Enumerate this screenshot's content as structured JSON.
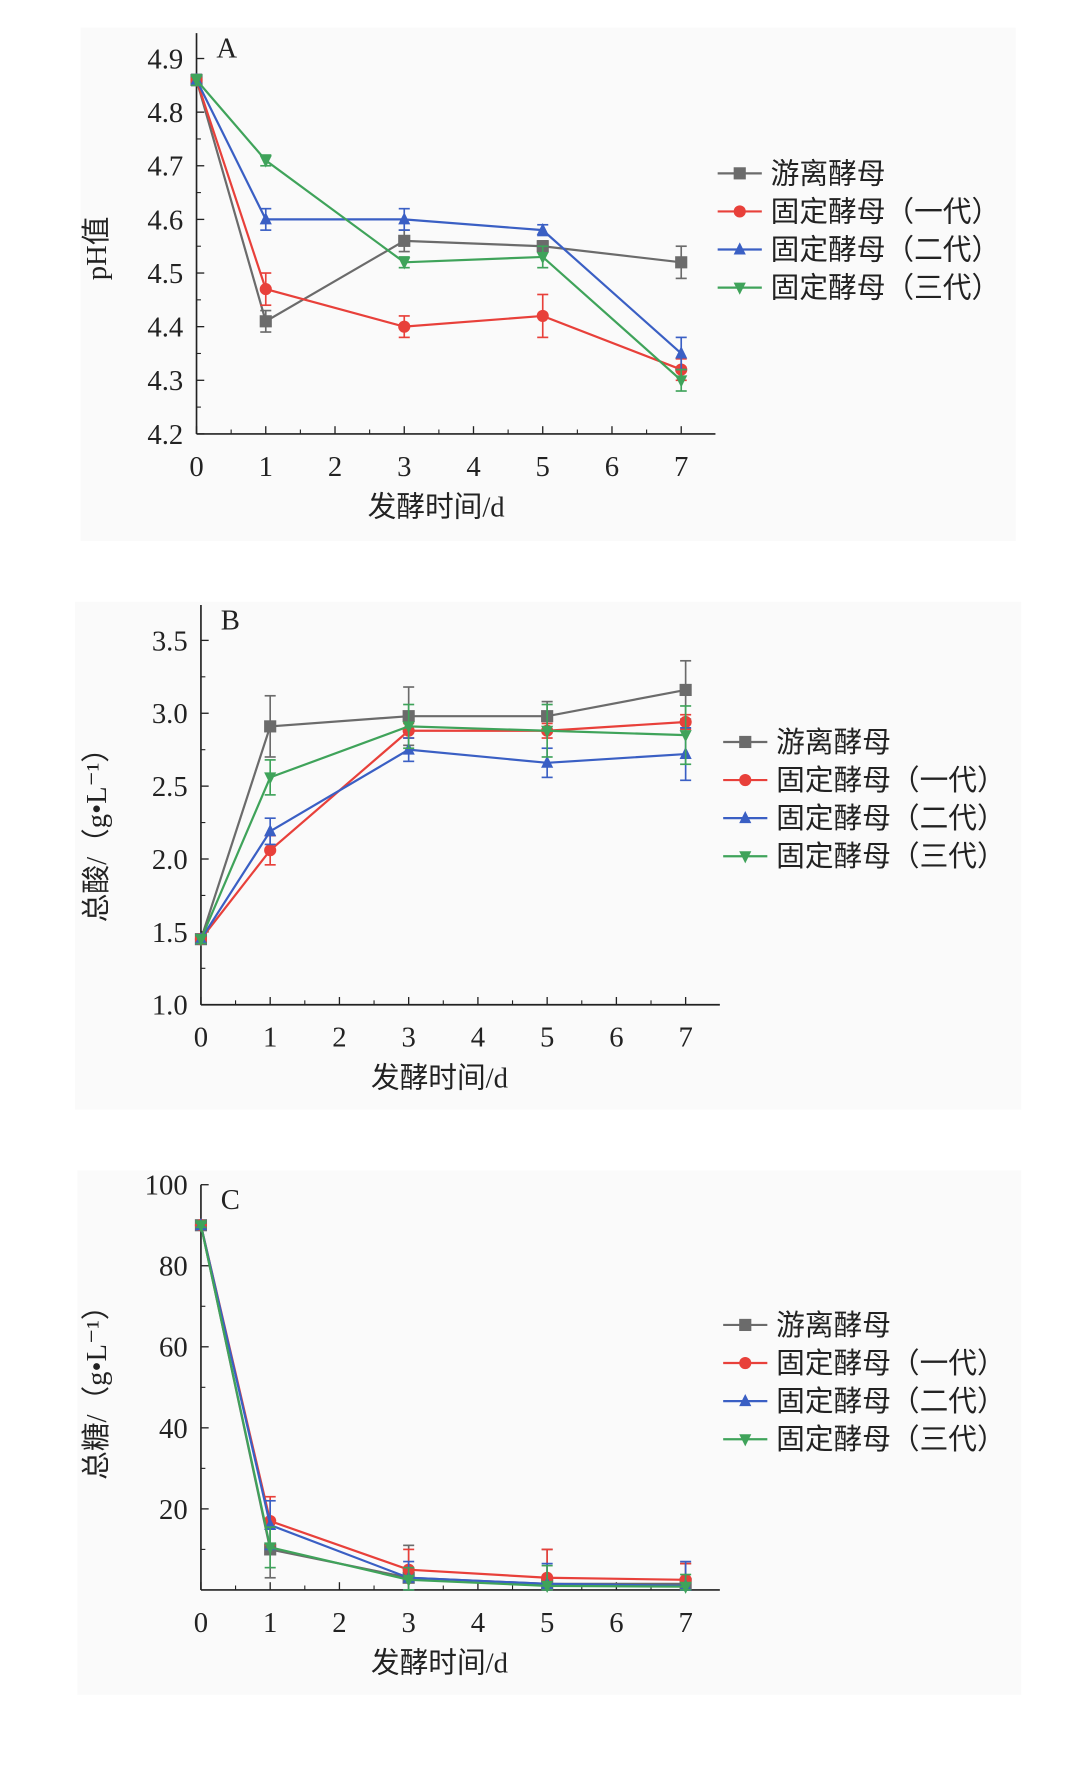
{
  "chart_data": [
    {
      "type": "line",
      "panel_label": "A",
      "xlabel": "发酵时间/d",
      "ylabel": "pH值",
      "x": [
        0,
        1,
        3,
        5,
        7
      ],
      "xticks": [
        "0",
        "1",
        "2",
        "3",
        "4",
        "5",
        "6",
        "7"
      ],
      "xlim": [
        0,
        7
      ],
      "ylim": [
        4.2,
        4.9
      ],
      "yticks": [
        "4.2",
        "4.3",
        "4.4",
        "4.5",
        "4.6",
        "4.7",
        "4.8",
        "4.9"
      ],
      "legend_position": "right",
      "series": [
        {
          "name": "游离酵母",
          "color": "#6b6b6b",
          "marker": "square",
          "values": [
            4.86,
            4.41,
            4.56,
            4.55,
            4.52
          ],
          "errors": [
            0.01,
            0.02,
            0.02,
            0.01,
            0.03
          ]
        },
        {
          "name": "固定酵母（一代）",
          "color": "#e8403a",
          "marker": "circle",
          "values": [
            4.86,
            4.47,
            4.4,
            4.42,
            4.32
          ],
          "errors": [
            0.01,
            0.03,
            0.02,
            0.04,
            0.02
          ]
        },
        {
          "name": "固定酵母（二代）",
          "color": "#3a5fc4",
          "marker": "triangle-up",
          "values": [
            4.86,
            4.6,
            4.6,
            4.58,
            4.35
          ],
          "errors": [
            0.01,
            0.02,
            0.02,
            0.01,
            0.03
          ]
        },
        {
          "name": "固定酵母（三代）",
          "color": "#3fa35a",
          "marker": "triangle-down",
          "values": [
            4.86,
            4.71,
            4.52,
            4.53,
            4.3
          ],
          "errors": [
            0.01,
            0.01,
            0.01,
            0.02,
            0.02
          ]
        }
      ]
    },
    {
      "type": "line",
      "panel_label": "B",
      "xlabel": "发酵时间/d",
      "ylabel": "总酸/（g•L⁻¹）",
      "x": [
        0,
        1,
        3,
        5,
        7
      ],
      "xticks": [
        "0",
        "1",
        "2",
        "3",
        "4",
        "5",
        "6",
        "7"
      ],
      "xlim": [
        0,
        7
      ],
      "ylim": [
        1.0,
        3.5
      ],
      "yticks": [
        "1.0",
        "1.5",
        "2.0",
        "2.5",
        "3.0",
        "3.5"
      ],
      "legend_position": "right",
      "series": [
        {
          "name": "游离酵母",
          "color": "#6b6b6b",
          "marker": "square",
          "values": [
            1.45,
            2.91,
            2.98,
            2.98,
            3.16
          ],
          "errors": [
            0.03,
            0.21,
            0.2,
            0.1,
            0.2
          ]
        },
        {
          "name": "固定酵母（一代）",
          "color": "#e8403a",
          "marker": "circle",
          "values": [
            1.45,
            2.06,
            2.88,
            2.88,
            2.94
          ],
          "errors": [
            0.03,
            0.1,
            0.05,
            0.05,
            0.05
          ]
        },
        {
          "name": "固定酵母（二代）",
          "color": "#3a5fc4",
          "marker": "triangle-up",
          "values": [
            1.45,
            2.19,
            2.75,
            2.66,
            2.72
          ],
          "errors": [
            0.03,
            0.09,
            0.08,
            0.1,
            0.18
          ]
        },
        {
          "name": "固定酵母（三代）",
          "color": "#3fa35a",
          "marker": "triangle-down",
          "values": [
            1.45,
            2.56,
            2.91,
            2.88,
            2.85
          ],
          "errors": [
            0.03,
            0.12,
            0.15,
            0.18,
            0.2
          ]
        }
      ]
    },
    {
      "type": "line",
      "panel_label": "C",
      "xlabel": "发酵时间/d",
      "ylabel": "总糖/（g•L⁻¹）",
      "x": [
        0,
        1,
        3,
        5,
        7
      ],
      "xticks": [
        "0",
        "1",
        "2",
        "3",
        "4",
        "5",
        "6",
        "7"
      ],
      "xlim": [
        0,
        7
      ],
      "ylim": [
        0,
        100
      ],
      "yticks": [
        "20",
        "40",
        "60",
        "80",
        "100"
      ],
      "legend_position": "right",
      "series": [
        {
          "name": "游离酵母",
          "color": "#6b6b6b",
          "marker": "square",
          "values": [
            90,
            10,
            3,
            1.5,
            1.5
          ],
          "errors": [
            0.5,
            7,
            8,
            8.5,
            5
          ]
        },
        {
          "name": "固定酵母（一代）",
          "color": "#e8403a",
          "marker": "circle",
          "values": [
            90,
            17,
            5,
            3,
            2.5
          ],
          "errors": [
            0.5,
            6,
            5,
            7,
            4
          ]
        },
        {
          "name": "固定酵母（二代）",
          "color": "#3a5fc4",
          "marker": "triangle-up",
          "values": [
            90,
            16,
            3,
            1.5,
            1
          ],
          "errors": [
            0.5,
            6,
            4,
            5,
            6
          ]
        },
        {
          "name": "固定酵母（三代）",
          "color": "#3fa35a",
          "marker": "triangle-down",
          "values": [
            90,
            10.5,
            2.5,
            1,
            0.8
          ],
          "errors": [
            0.5,
            5,
            3,
            5,
            3
          ]
        }
      ]
    }
  ]
}
